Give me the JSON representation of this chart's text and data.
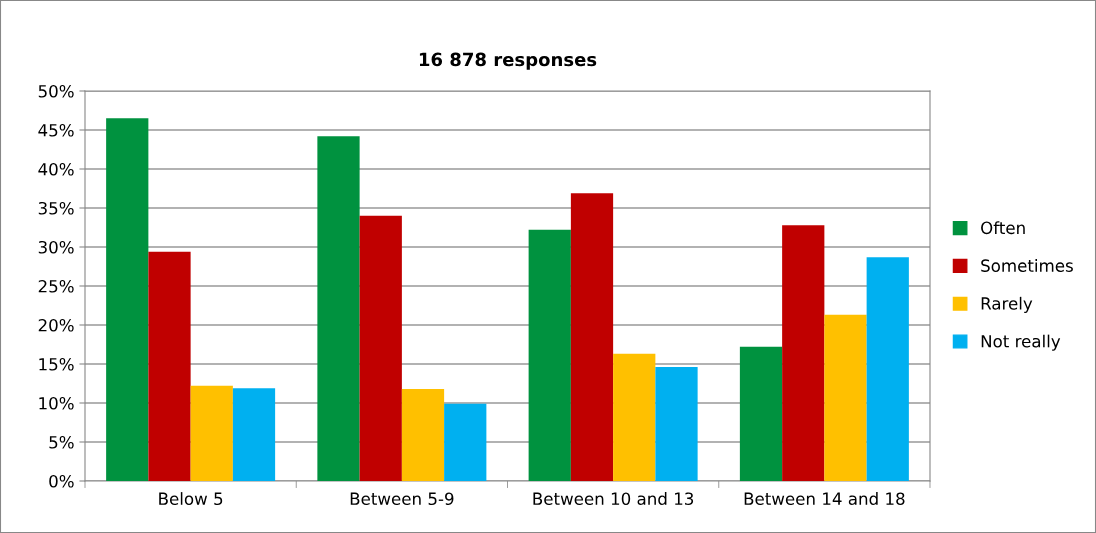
{
  "chart_data": {
    "type": "bar",
    "title": "16 878 responses",
    "categories": [
      "Below 5",
      "Between 5-9",
      "Between 10 and 13",
      "Between 14 and 18"
    ],
    "series": [
      {
        "name": "Often",
        "color": "#00923f",
        "values": [
          46.5,
          44.2,
          32.2,
          17.2
        ]
      },
      {
        "name": "Sometimes",
        "color": "#c00000",
        "values": [
          29.4,
          34.0,
          36.9,
          32.8
        ]
      },
      {
        "name": "Rarely",
        "color": "#ffc000",
        "values": [
          12.2,
          11.8,
          16.3,
          21.3
        ]
      },
      {
        "name": "Not really",
        "color": "#00b0f0",
        "values": [
          11.9,
          9.9,
          14.6,
          28.7
        ]
      }
    ],
    "ylim": [
      0,
      50
    ],
    "yticks": [
      {
        "value": 0,
        "label": "0%"
      },
      {
        "value": 5,
        "label": "5%"
      },
      {
        "value": 10,
        "label": "10%"
      },
      {
        "value": 15,
        "label": "15%"
      },
      {
        "value": 20,
        "label": "20%"
      },
      {
        "value": 25,
        "label": "25%"
      },
      {
        "value": 30,
        "label": "30%"
      },
      {
        "value": 35,
        "label": "35%"
      },
      {
        "value": 40,
        "label": "40%"
      },
      {
        "value": 45,
        "label": "45%"
      },
      {
        "value": 50,
        "label": "50%"
      }
    ],
    "grid": "y",
    "legend": "right"
  }
}
